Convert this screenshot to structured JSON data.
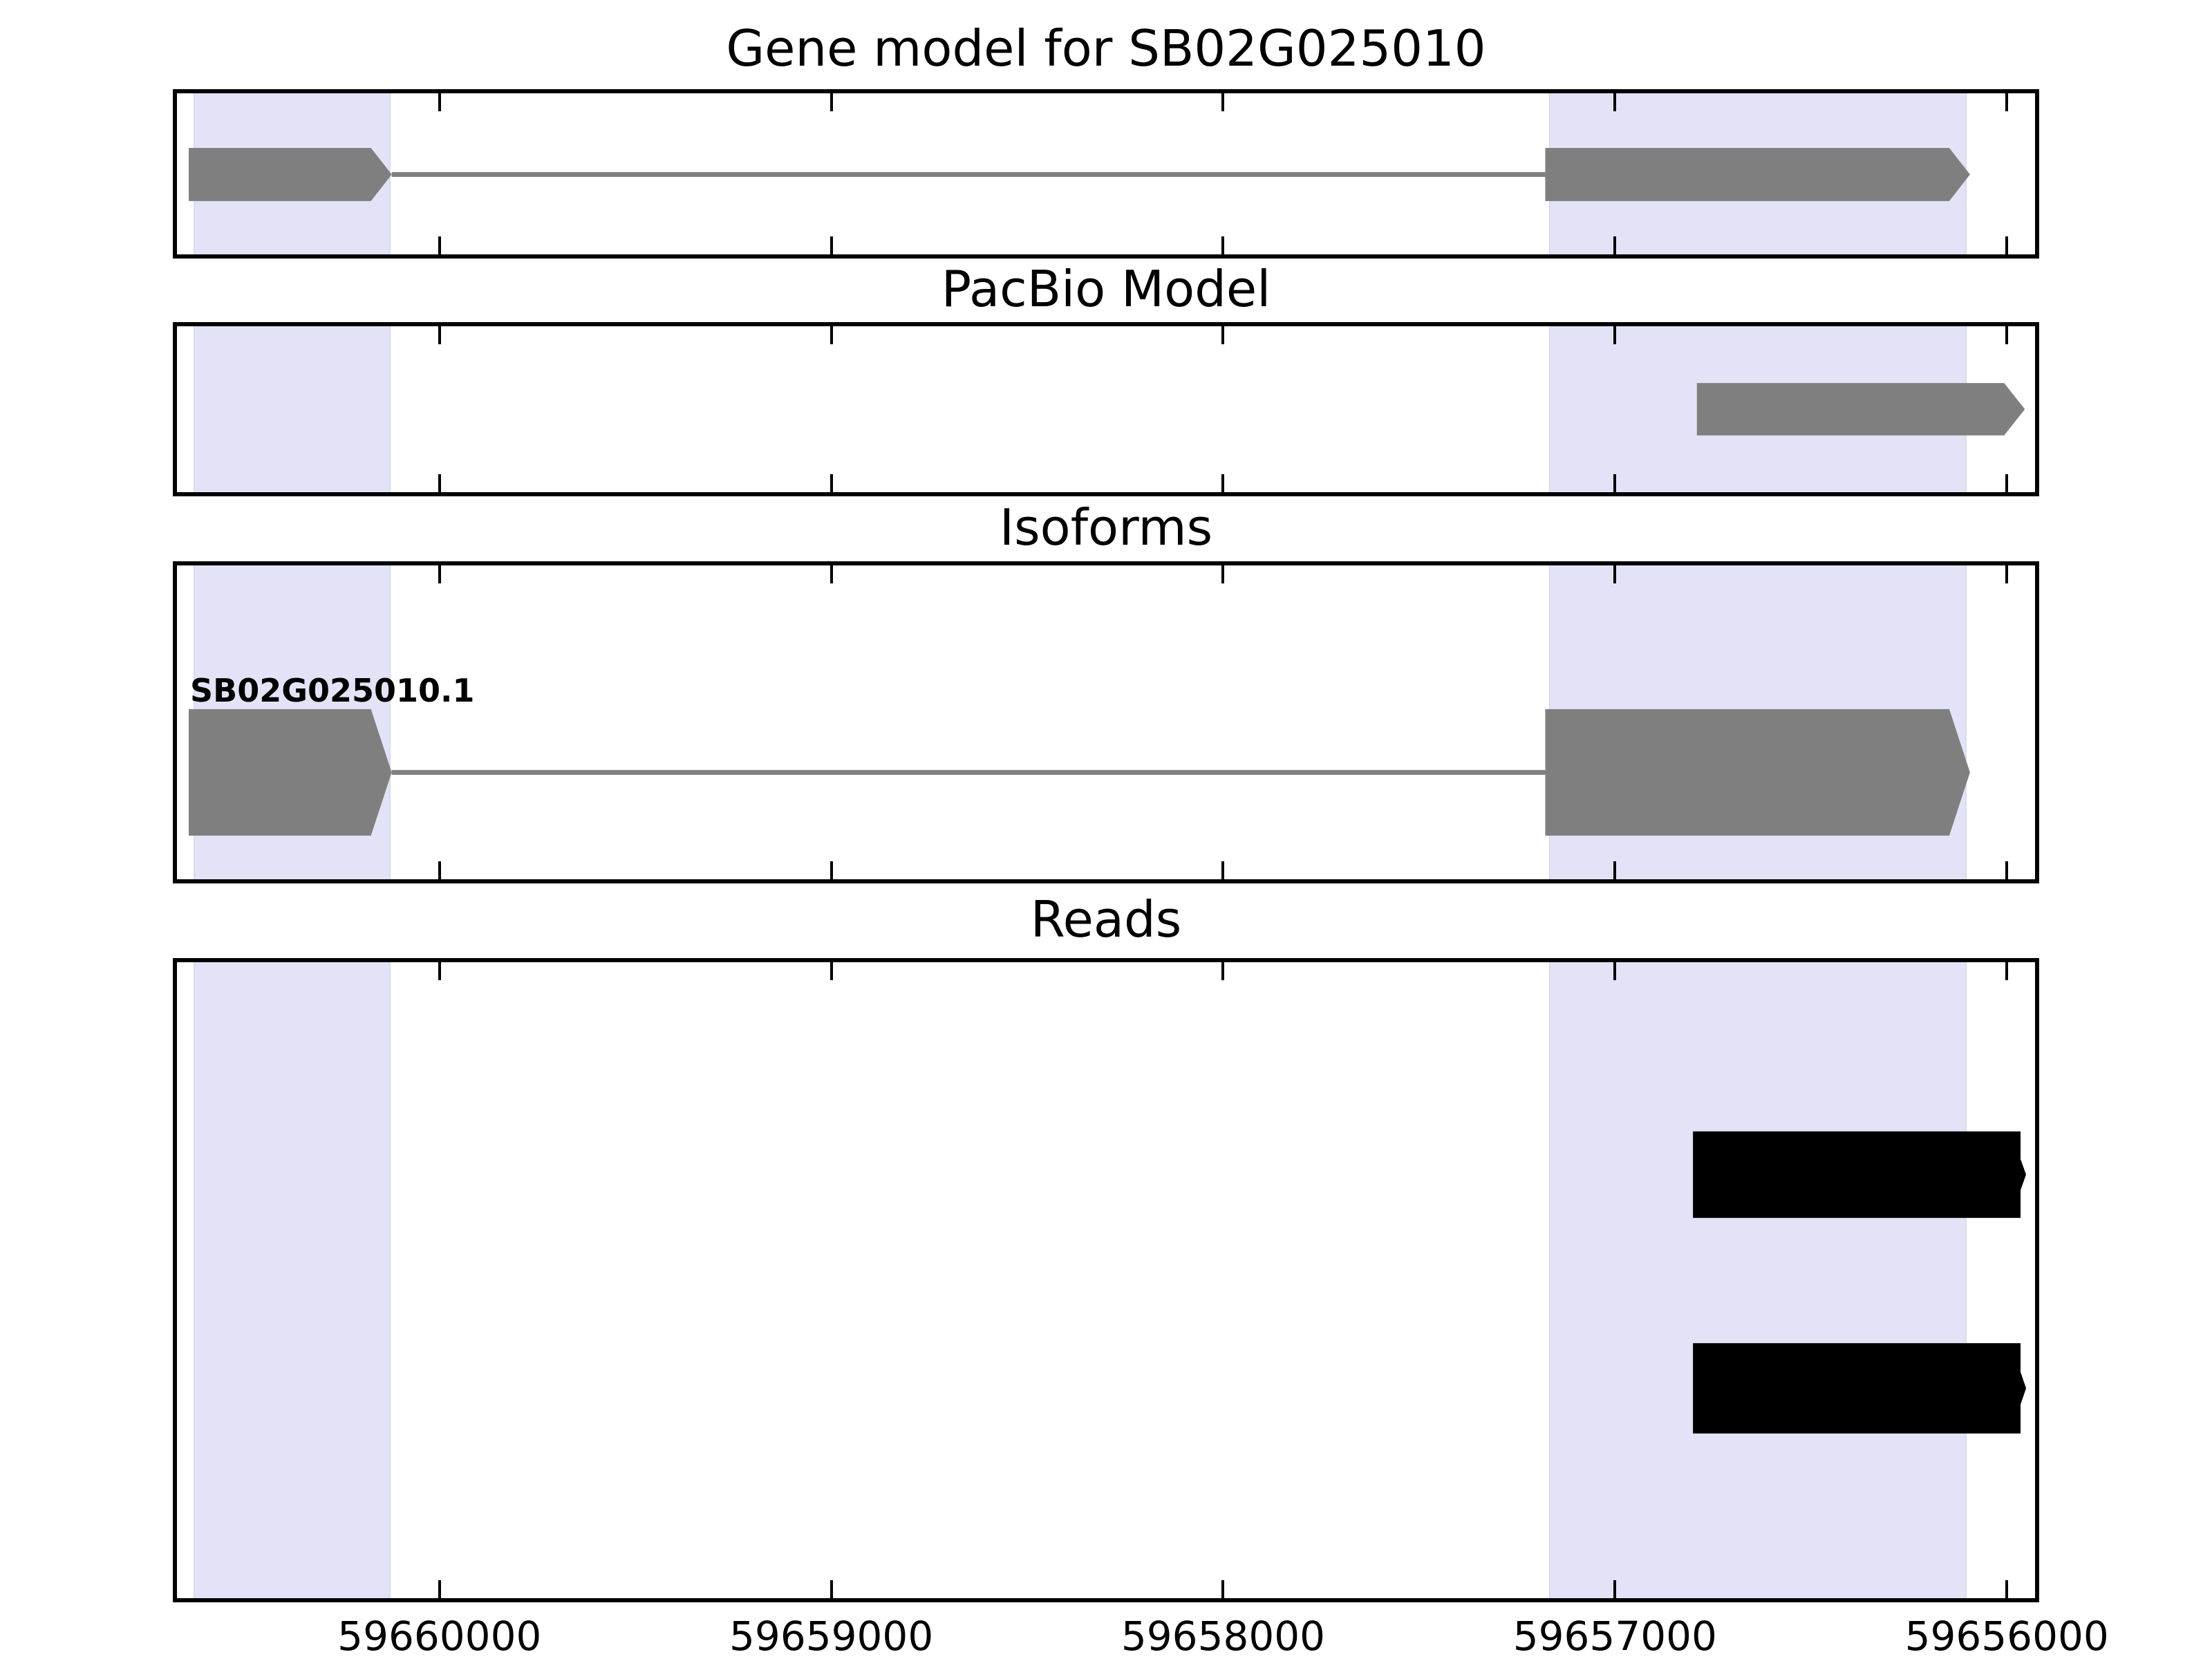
{
  "chart_data": {
    "type": "bar",
    "subtype": "genomic-interval-tracks",
    "title": "Gene model for SB02G025010",
    "legend": null,
    "grid": false,
    "x_axis": {
      "label": "",
      "reversed": true,
      "range_left": 59660670,
      "range_right": 59655928,
      "ticks": [
        59660000,
        59659000,
        59658000,
        59657000,
        59656000
      ],
      "tick_labels": [
        "59660000",
        "59659000",
        "59658000",
        "59657000",
        "59656000"
      ]
    },
    "highlight_regions": [
      {
        "start": 59660628,
        "end": 59660125
      },
      {
        "start": 59657168,
        "end": 59656103
      }
    ],
    "tracks": [
      {
        "key": "gene-model",
        "title": "Gene model for SB02G025010",
        "features": [
          {
            "type": "exon",
            "start": 59660640,
            "end": 59660122,
            "arrow": "right"
          },
          {
            "type": "intron",
            "start": 59660122,
            "end": 59657178
          },
          {
            "type": "exon",
            "start": 59657178,
            "end": 59656094,
            "arrow": "right"
          }
        ]
      },
      {
        "key": "pacbio-model",
        "title": "PacBio Model",
        "features": [
          {
            "type": "exon",
            "start": 59656791,
            "end": 59655954,
            "arrow": "right"
          }
        ]
      },
      {
        "key": "isoforms",
        "title": "Isoforms",
        "isoform_label": "SB02G025010.1",
        "features": [
          {
            "type": "exon",
            "start": 59660640,
            "end": 59660122,
            "arrow": "right"
          },
          {
            "type": "intron",
            "start": 59660122,
            "end": 59657178
          },
          {
            "type": "exon",
            "start": 59657178,
            "end": 59656094,
            "arrow": "right"
          }
        ]
      },
      {
        "key": "reads",
        "title": "Reads",
        "features": [
          {
            "type": "read",
            "start": 59656801,
            "end": 59655965,
            "row": 0
          },
          {
            "type": "read",
            "start": 59656801,
            "end": 59655965,
            "row": 1
          }
        ]
      }
    ]
  },
  "colors": {
    "background": "#ffffff",
    "frame": "#000000",
    "highlight_band": "#e3e3f8",
    "exon_fill": "#7f7f7f",
    "intron_line": "#7f7f7f",
    "read_fill": "#000000",
    "text": "#000000"
  }
}
